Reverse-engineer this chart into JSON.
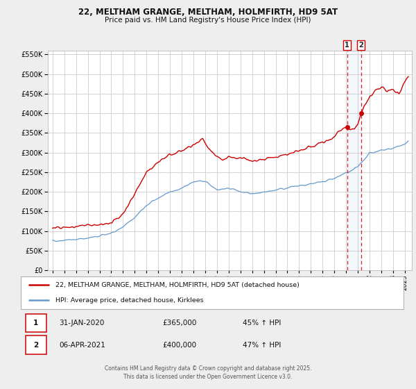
{
  "title1": "22, MELTHAM GRANGE, MELTHAM, HOLMFIRTH, HD9 5AT",
  "title2": "Price paid vs. HM Land Registry's House Price Index (HPI)",
  "legend_line1": "22, MELTHAM GRANGE, MELTHAM, HOLMFIRTH, HD9 5AT (detached house)",
  "legend_line2": "HPI: Average price, detached house, Kirklees",
  "footer": "Contains HM Land Registry data © Crown copyright and database right 2025.\nThis data is licensed under the Open Government Licence v3.0.",
  "table": [
    {
      "num": "1",
      "date": "31-JAN-2020",
      "price": "£365,000",
      "pct": "45% ↑ HPI"
    },
    {
      "num": "2",
      "date": "06-APR-2021",
      "price": "£400,000",
      "pct": "47% ↑ HPI"
    }
  ],
  "vline1_x": 2020.08,
  "vline2_x": 2021.27,
  "marker1_x": 2020.08,
  "marker1_y": 365000,
  "marker2_x": 2021.27,
  "marker2_y": 400000,
  "shade_x1": 2020.08,
  "shade_x2": 2021.27,
  "red_color": "#cc0000",
  "blue_color": "#6699cc",
  "background_color": "#eeeeee",
  "plot_bg_color": "#ffffff",
  "grid_color": "#cccccc",
  "ylim": [
    0,
    560000
  ],
  "xlim_start": 1994.6,
  "xlim_end": 2025.6,
  "yticks": [
    0,
    50000,
    100000,
    150000,
    200000,
    250000,
    300000,
    350000,
    400000,
    450000,
    500000,
    550000
  ]
}
